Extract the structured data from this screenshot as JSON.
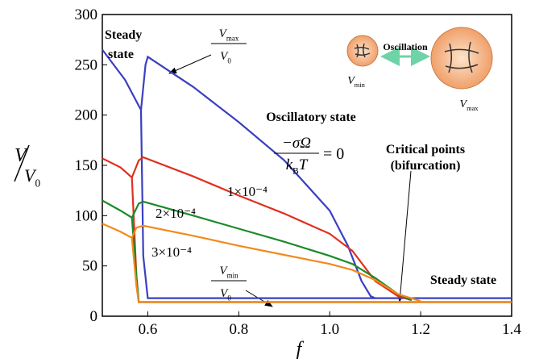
{
  "chart_data": {
    "type": "line",
    "xlabel": "f",
    "ylabel": {
      "num": "V",
      "den": {
        "main": "V",
        "sub": "0"
      }
    },
    "xlim": [
      0.5,
      1.4
    ],
    "xticks": [
      0.6,
      0.8,
      {
        "value": 1.0,
        "label": "1.0"
      },
      1.2,
      1.4
    ],
    "ylim": [
      0,
      300
    ],
    "yticks": [
      0,
      50,
      100,
      150,
      200,
      250,
      300
    ],
    "series": [
      {
        "name": "= 0",
        "color": "#3b3fc0",
        "x": [
          0.5,
          0.55,
          0.585,
          0.59,
          0.6,
          0.7,
          1.0,
          1.2,
          1.4
        ],
        "values": [
          265,
          235,
          205,
          60,
          18,
          18,
          18,
          18,
          18
        ],
        "upper_x": [
          0.585,
          0.595,
          0.6,
          0.7,
          0.8,
          0.9,
          1.0,
          1.04,
          1.07,
          1.09,
          1.1
        ],
        "upper_values": [
          205,
          250,
          258,
          228,
          193,
          155,
          105,
          70,
          35,
          20,
          18
        ]
      },
      {
        "name": "1×10⁻⁴",
        "color": "#e0301e",
        "x": [
          0.5,
          0.54,
          0.565,
          0.575,
          0.58,
          1.4
        ],
        "values": [
          157,
          148,
          138,
          40,
          14,
          14
        ],
        "upper_x": [
          0.565,
          0.58,
          0.59,
          0.7,
          0.8,
          0.9,
          1.0,
          1.05,
          1.1,
          1.15,
          1.18
        ],
        "upper_values": [
          138,
          155,
          158,
          139,
          120,
          102,
          82,
          65,
          35,
          20,
          16
        ]
      },
      {
        "name": "2×10⁻⁴",
        "color": "#1a8a2a",
        "x": [
          0.5,
          0.54,
          0.565,
          0.575,
          0.58,
          1.4
        ],
        "values": [
          115,
          105,
          98,
          40,
          14,
          14
        ],
        "upper_x": [
          0.565,
          0.58,
          0.59,
          0.7,
          0.8,
          0.9,
          1.0,
          1.05,
          1.1,
          1.15,
          1.18
        ],
        "upper_values": [
          98,
          112,
          114,
          100,
          87,
          74,
          60,
          52,
          38,
          22,
          16
        ]
      },
      {
        "name": "3×10⁻⁴",
        "color": "#f28a1e",
        "x": [
          0.5,
          0.54,
          0.565,
          0.575,
          0.58,
          1.4
        ],
        "values": [
          92,
          84,
          78,
          30,
          14,
          14
        ],
        "upper_x": [
          0.565,
          0.575,
          0.59,
          0.7,
          0.8,
          0.9,
          1.0,
          1.05,
          1.1,
          1.15,
          1.2
        ],
        "upper_values": [
          78,
          88,
          90,
          80,
          70,
          61,
          52,
          46,
          36,
          22,
          15
        ]
      }
    ],
    "annotations": {
      "steady_left": [
        "Steady",
        "state"
      ],
      "vmax_label": {
        "num": {
          "main": "V",
          "sub": "max"
        },
        "den": {
          "main": "V",
          "sub": "0"
        }
      },
      "vmin_label": {
        "num": {
          "main": "V",
          "sub": "min"
        },
        "den": {
          "main": "V",
          "sub": "0"
        }
      },
      "oscillatory": "Oscillatory state",
      "sigma": {
        "num": "−σΩ",
        "den": {
          "main": "k",
          "sub": "B",
          "after": "T"
        }
      },
      "critical": [
        "Critical points",
        "(bifurcation)"
      ],
      "steady_right": "Steady state",
      "oscillation": "Oscillation",
      "inset_vmin": {
        "main": "V",
        "sub": "min"
      },
      "inset_vmax": {
        "main": "V",
        "sub": "max"
      }
    }
  }
}
